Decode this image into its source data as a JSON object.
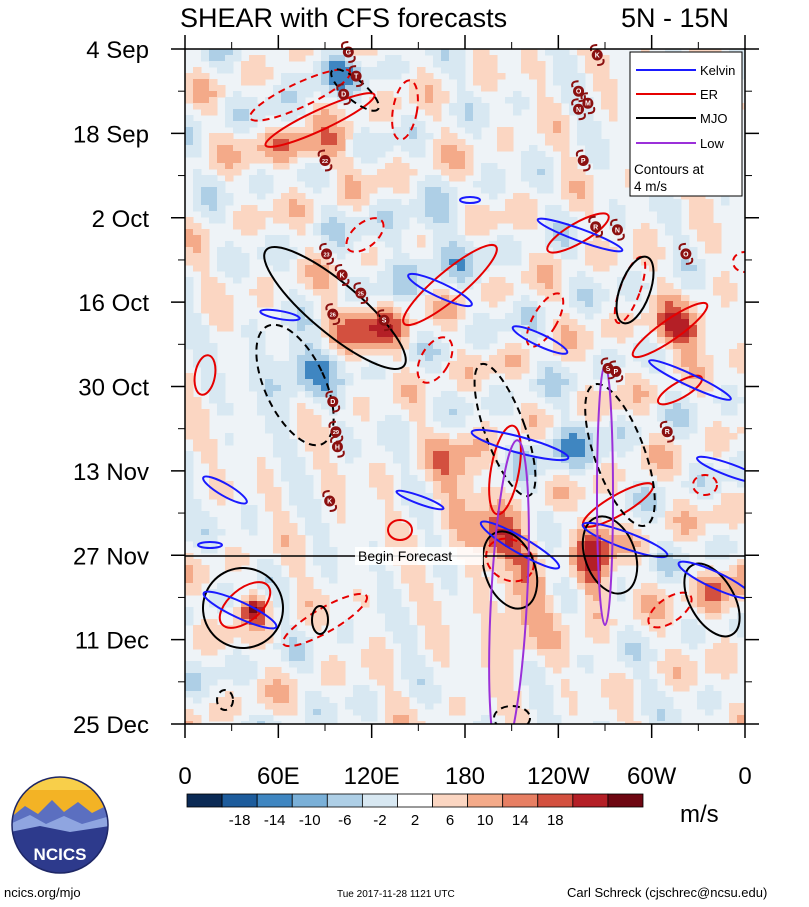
{
  "chart_data": {
    "type": "heatmap",
    "title": "SHEAR with CFS forecasts",
    "lat_band": "5N - 15N",
    "x_tick_labels": [
      "0",
      "60E",
      "120E",
      "180",
      "120W",
      "60W",
      "0"
    ],
    "x_tick_degrees": [
      0,
      60,
      120,
      180,
      240,
      300,
      360
    ],
    "y_tick_labels": [
      "4 Sep",
      "18 Sep",
      "2 Oct",
      "16 Oct",
      "30 Oct",
      "13 Nov",
      "27 Nov",
      "11 Dec",
      "25 Dec"
    ],
    "y_tick_day_offsets": [
      0,
      14,
      28,
      42,
      56,
      70,
      84,
      98,
      112
    ],
    "begin_forecast_label": "Begin Forecast",
    "begin_forecast_day": 84,
    "legend": {
      "entries": [
        {
          "label": "Kelvin",
          "color": "#1a1aff"
        },
        {
          "label": "ER",
          "color": "#e60000"
        },
        {
          "label": "MJO",
          "color": "#000000"
        },
        {
          "label": "Low",
          "color": "#9b30d9"
        }
      ],
      "note_line1": "Contours at",
      "note_line2": "4 m/s"
    },
    "colorbar": {
      "unit": "m/s",
      "tick_labels": [
        "-18",
        "-14",
        "-10",
        "-6",
        "-2",
        "2",
        "6",
        "10",
        "14",
        "18"
      ],
      "colors": [
        "#0b2a55",
        "#1d5c9c",
        "#3f86c1",
        "#7ab0d8",
        "#aecfe6",
        "#d8e8f2",
        "#ffffff",
        "#fbd6c2",
        "#f4aa89",
        "#e77f63",
        "#d3503f",
        "#b41f26",
        "#6e0712"
      ]
    },
    "storms": [
      {
        "label": "G",
        "lon": 105,
        "day": 0.5
      },
      {
        "label": "K",
        "lon": 265,
        "day": 1
      },
      {
        "label": "T",
        "lon": 110,
        "day": 4.5
      },
      {
        "label": "D",
        "lon": 102,
        "day": 7.5
      },
      {
        "label": "O",
        "lon": 253,
        "day": 7
      },
      {
        "label": "N",
        "lon": 253,
        "day": 10
      },
      {
        "label": "M",
        "lon": 259,
        "day": 9
      },
      {
        "label": "22",
        "lon": 90,
        "day": 18.5
      },
      {
        "label": "P",
        "lon": 256,
        "day": 18.5
      },
      {
        "label": "R",
        "lon": 264,
        "day": 29.5
      },
      {
        "label": "N",
        "lon": 278,
        "day": 30
      },
      {
        "label": "O",
        "lon": 322,
        "day": 34
      },
      {
        "label": "23",
        "lon": 91,
        "day": 34
      },
      {
        "label": "K",
        "lon": 101,
        "day": 37.5
      },
      {
        "label": "25",
        "lon": 113,
        "day": 40.5
      },
      {
        "label": "26",
        "lon": 95,
        "day": 44
      },
      {
        "label": "S",
        "lon": 128,
        "day": 45
      },
      {
        "label": "S",
        "lon": 272,
        "day": 53
      },
      {
        "label": "P",
        "lon": 277,
        "day": 53.5
      },
      {
        "label": "D",
        "lon": 95,
        "day": 58.5
      },
      {
        "label": "R",
        "lon": 310,
        "day": 63.5
      },
      {
        "label": "29",
        "lon": 97,
        "day": 63.5
      },
      {
        "label": "H",
        "lon": 98,
        "day": 66
      },
      {
        "label": "K",
        "lon": 93,
        "day": 75
      }
    ]
  },
  "logo": {
    "text": "NCICS"
  },
  "footer": {
    "left": "ncics.org/mjo",
    "center": "Tue 2017-11-28 1121 UTC",
    "right": "Carl Schreck (cjschrec@ncsu.edu)"
  }
}
